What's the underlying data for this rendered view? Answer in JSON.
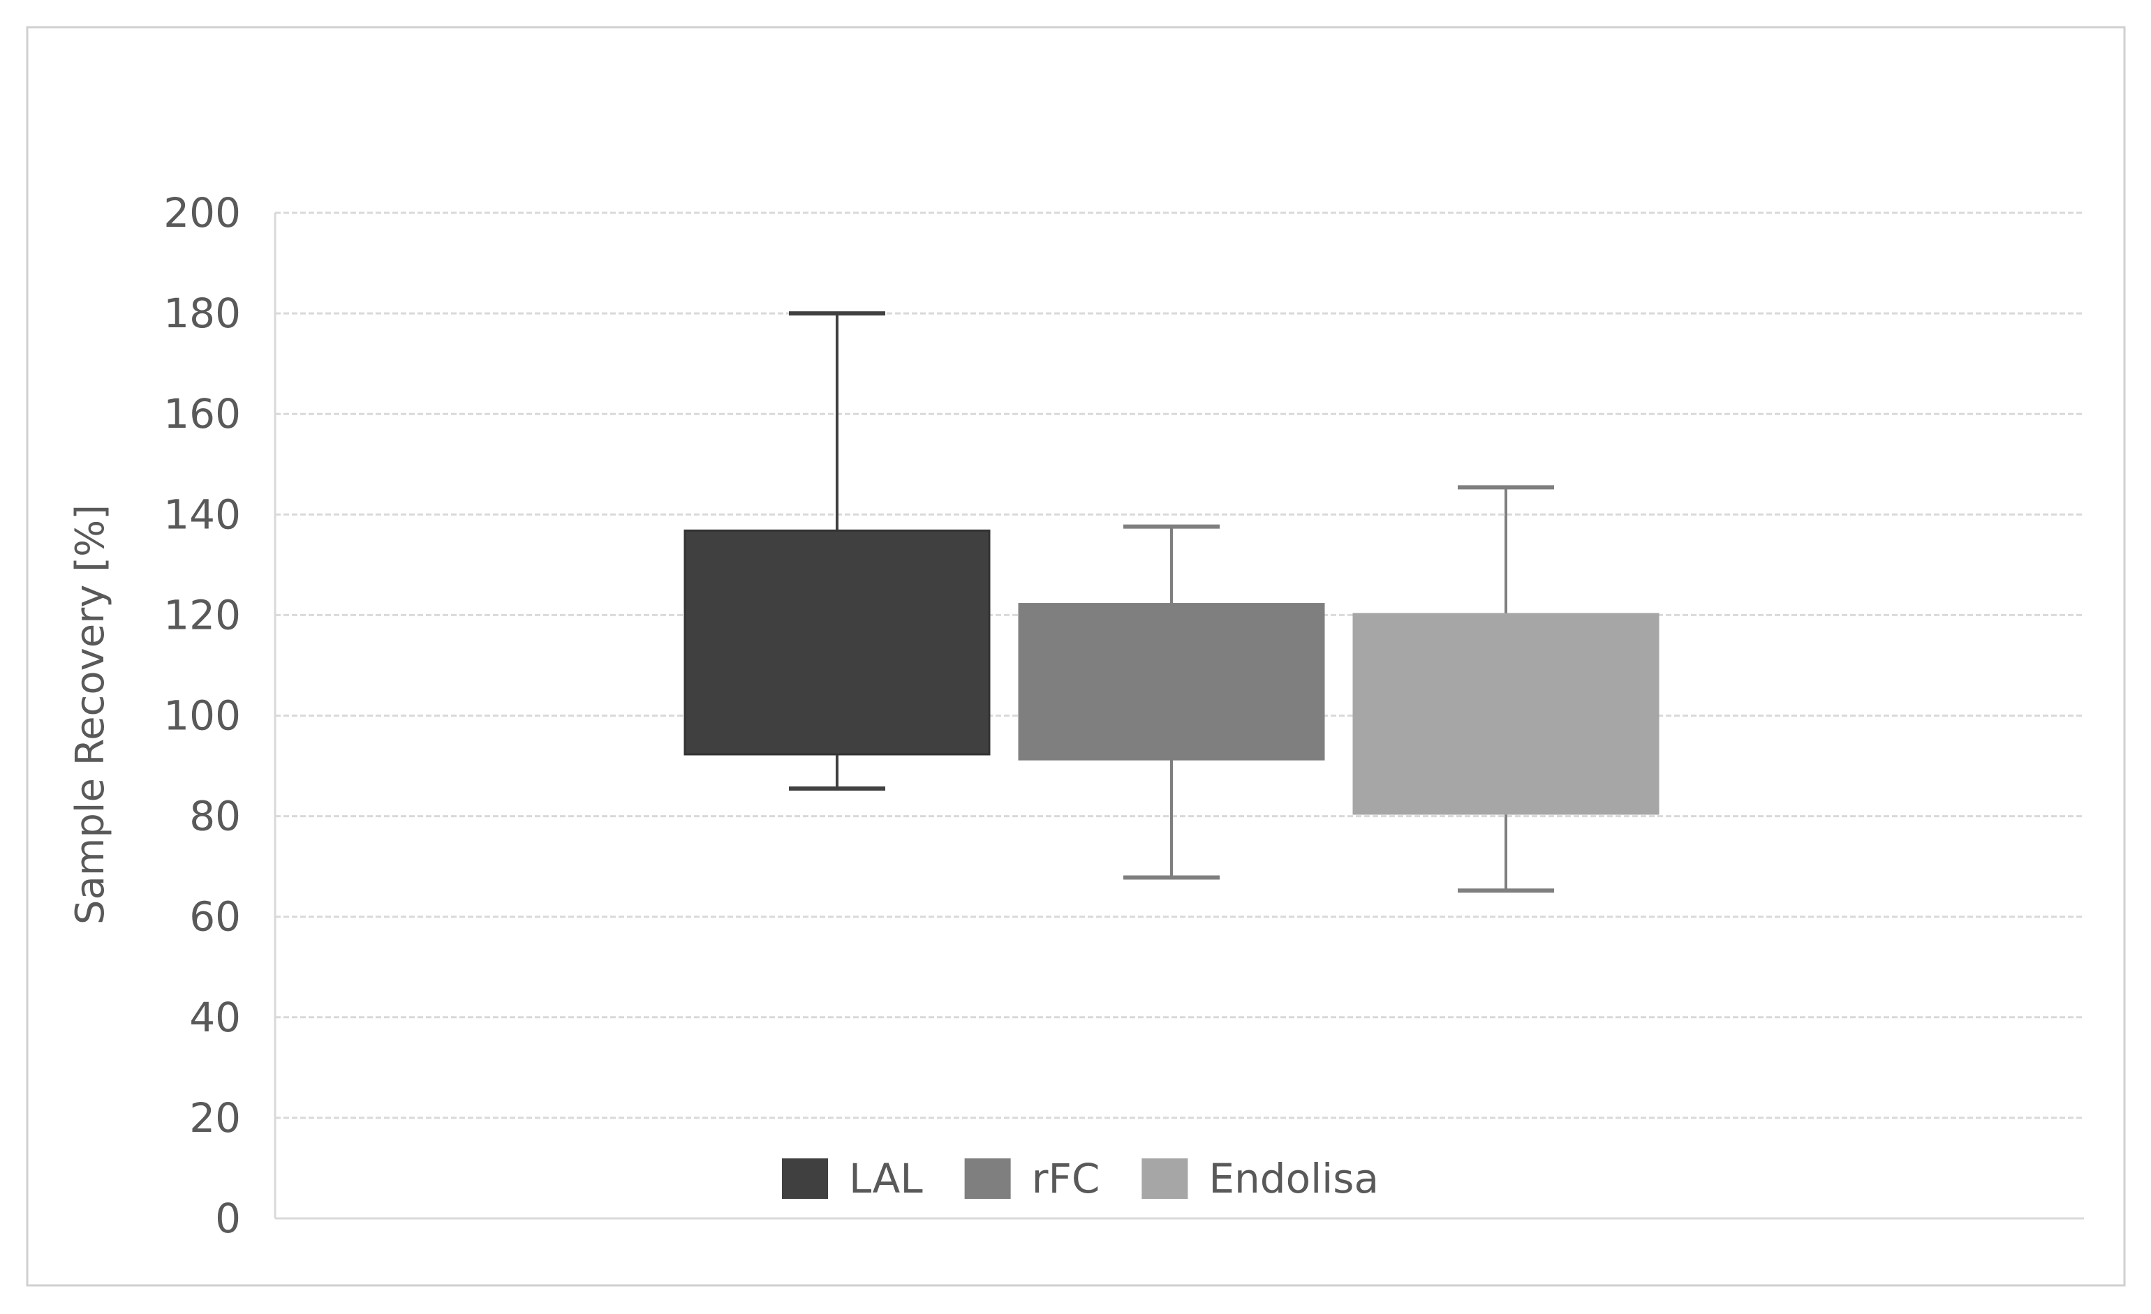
{
  "chart_data": {
    "type": "box",
    "title": "",
    "xlabel": "",
    "ylabel": "Sample Recovery [%]",
    "ylim": [
      0,
      200
    ],
    "yticks": [
      0,
      20,
      40,
      60,
      80,
      100,
      120,
      140,
      160,
      180,
      200
    ],
    "grid": true,
    "legend_position": "bottom",
    "series": [
      {
        "name": "LAL",
        "color": "#404040",
        "box_low": 92.3,
        "box_high": 136.8,
        "whisker_low": 85.5,
        "whisker_high": 180
      },
      {
        "name": "rFC",
        "color": "#7f7f7f",
        "box_low": 91.3,
        "box_high": 122.2,
        "whisker_low": 67.8,
        "whisker_high": 137.6
      },
      {
        "name": "Endolisa",
        "color": "#a6a6a6",
        "box_low": 80.5,
        "box_high": 120.2,
        "whisker_low": 65.2,
        "whisker_high": 145.4
      }
    ]
  }
}
